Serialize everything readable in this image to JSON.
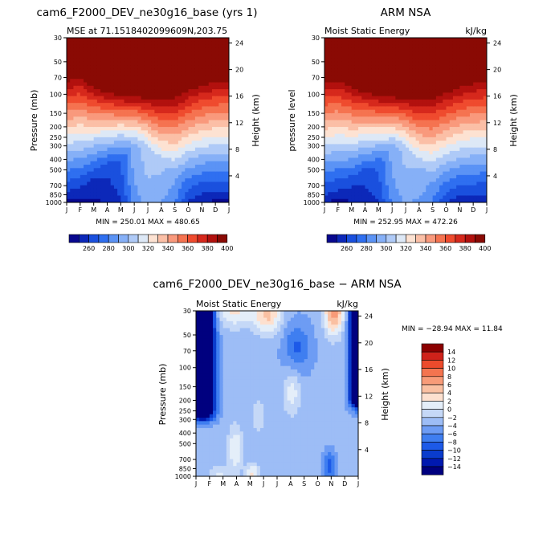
{
  "chart_data": [
    {
      "type": "heatmap",
      "title": "cam6_F2000_DEV_ne30g16_base (yrs 1)",
      "left_subtitle": "MSE at 71.1518402099609N,203.75",
      "right_subtitle": "",
      "ylabel": "Pressure (mb)",
      "ylabel_right": "Height (km)",
      "x_ticks": [
        "J",
        "F",
        "M",
        "A",
        "M",
        "J",
        "J",
        "A",
        "S",
        "O",
        "N",
        "D",
        "J"
      ],
      "y_ticks": [
        "30",
        "50",
        "70",
        "100",
        "150",
        "200",
        "250",
        "300",
        "400",
        "500",
        "700",
        "850",
        "1000"
      ],
      "height_ticks": [
        "24",
        "20",
        "16",
        "12",
        "8",
        "4"
      ],
      "min_max": "MIN = 250.01  MAX = 480.65",
      "colorbar_labels": [
        "260",
        "280",
        "300",
        "320",
        "340",
        "360",
        "380",
        "400"
      ],
      "trop": [
        850,
        800,
        600,
        500,
        400,
        300,
        320,
        450,
        600,
        750,
        800,
        820,
        850
      ],
      "hot": [
        47,
        45,
        60,
        70,
        78,
        80,
        80,
        76,
        70,
        60,
        53,
        49,
        47
      ],
      "low_mse": [
        258,
        257,
        260,
        262,
        270,
        296,
        305,
        302,
        292,
        270,
        262,
        259,
        258
      ],
      "high_mse": 420,
      "ylim": [
        1000,
        30
      ],
      "xlim": [
        1,
        13
      ]
    },
    {
      "type": "heatmap",
      "title": "ARM NSA",
      "left_subtitle": "Moist Static Energy",
      "right_subtitle": "kJ/kg",
      "ylabel": "pressure level",
      "ylabel_right": "Height (km)",
      "x_ticks": [
        "J",
        "F",
        "M",
        "A",
        "M",
        "J",
        "J",
        "A",
        "S",
        "O",
        "N",
        "D",
        "J"
      ],
      "y_ticks": [
        "30",
        "50",
        "70",
        "100",
        "150",
        "200",
        "250",
        "300",
        "400",
        "500",
        "700",
        "850",
        "1000"
      ],
      "height_ticks": [
        "24",
        "20",
        "16",
        "12",
        "8",
        "4"
      ],
      "min_max": "MIN = 252.95  MAX = 472.26",
      "colorbar_labels": [
        "260",
        "280",
        "300",
        "320",
        "340",
        "360",
        "380",
        "400"
      ],
      "trop": [
        850,
        800,
        700,
        550,
        450,
        320,
        330,
        480,
        650,
        780,
        820,
        850,
        850
      ],
      "hot": [
        48,
        47,
        58,
        68,
        76,
        80,
        80,
        75,
        70,
        62,
        55,
        50,
        48
      ],
      "low_mse": [
        260,
        259,
        261,
        264,
        272,
        294,
        303,
        300,
        290,
        272,
        264,
        261,
        260
      ],
      "high_mse": 420,
      "ylim": [
        1000,
        30
      ],
      "xlim": [
        1,
        13
      ]
    },
    {
      "type": "heatmap",
      "title": "cam6_F2000_DEV_ne30g16_base − ARM NSA",
      "left_subtitle": "Moist Static Energy",
      "right_subtitle": "kJ/kg",
      "ylabel": "Pressure (mb)",
      "ylabel_right": "Height (km)",
      "x_ticks": [
        "J",
        "F",
        "M",
        "A",
        "M",
        "J",
        "J",
        "A",
        "S",
        "O",
        "N",
        "D",
        "J"
      ],
      "y_ticks": [
        "30",
        "50",
        "70",
        "100",
        "150",
        "200",
        "250",
        "300",
        "400",
        "500",
        "700",
        "850",
        "1000"
      ],
      "height_ticks": [
        "24",
        "20",
        "16",
        "12",
        "8",
        "4"
      ],
      "min_max": "MIN = −28.94  MAX =  11.84",
      "colorbar_labels": [
        "14",
        "12",
        "10",
        "8",
        "6",
        "4",
        "2",
        "0",
        "−2",
        "−4",
        "−6",
        "−8",
        "−10",
        "−12",
        "−14"
      ],
      "ylim": [
        1000,
        30
      ],
      "xlim": [
        1,
        13
      ]
    }
  ],
  "colors": {
    "seq": [
      "#08088f",
      "#0c28b9",
      "#1a50de",
      "#2f6ff0",
      "#5b93f5",
      "#86b0f7",
      "#afcaf7",
      "#dde8f6",
      "#fde2d2",
      "#fbbfa6",
      "#f9997c",
      "#f57350",
      "#ef4b2e",
      "#d6281c",
      "#b2110e",
      "#8a0a04"
    ],
    "div": [
      "#00007f",
      "#0019b0",
      "#0a3ccd",
      "#1d5ae8",
      "#3f7ef0",
      "#6d9cf4",
      "#9dbdf6",
      "#c5d8f7",
      "#e4eef9",
      "#fde0cf",
      "#fac0a2",
      "#f89b78",
      "#f4744f",
      "#ec4b2c",
      "#cf221a",
      "#8b0000"
    ]
  }
}
